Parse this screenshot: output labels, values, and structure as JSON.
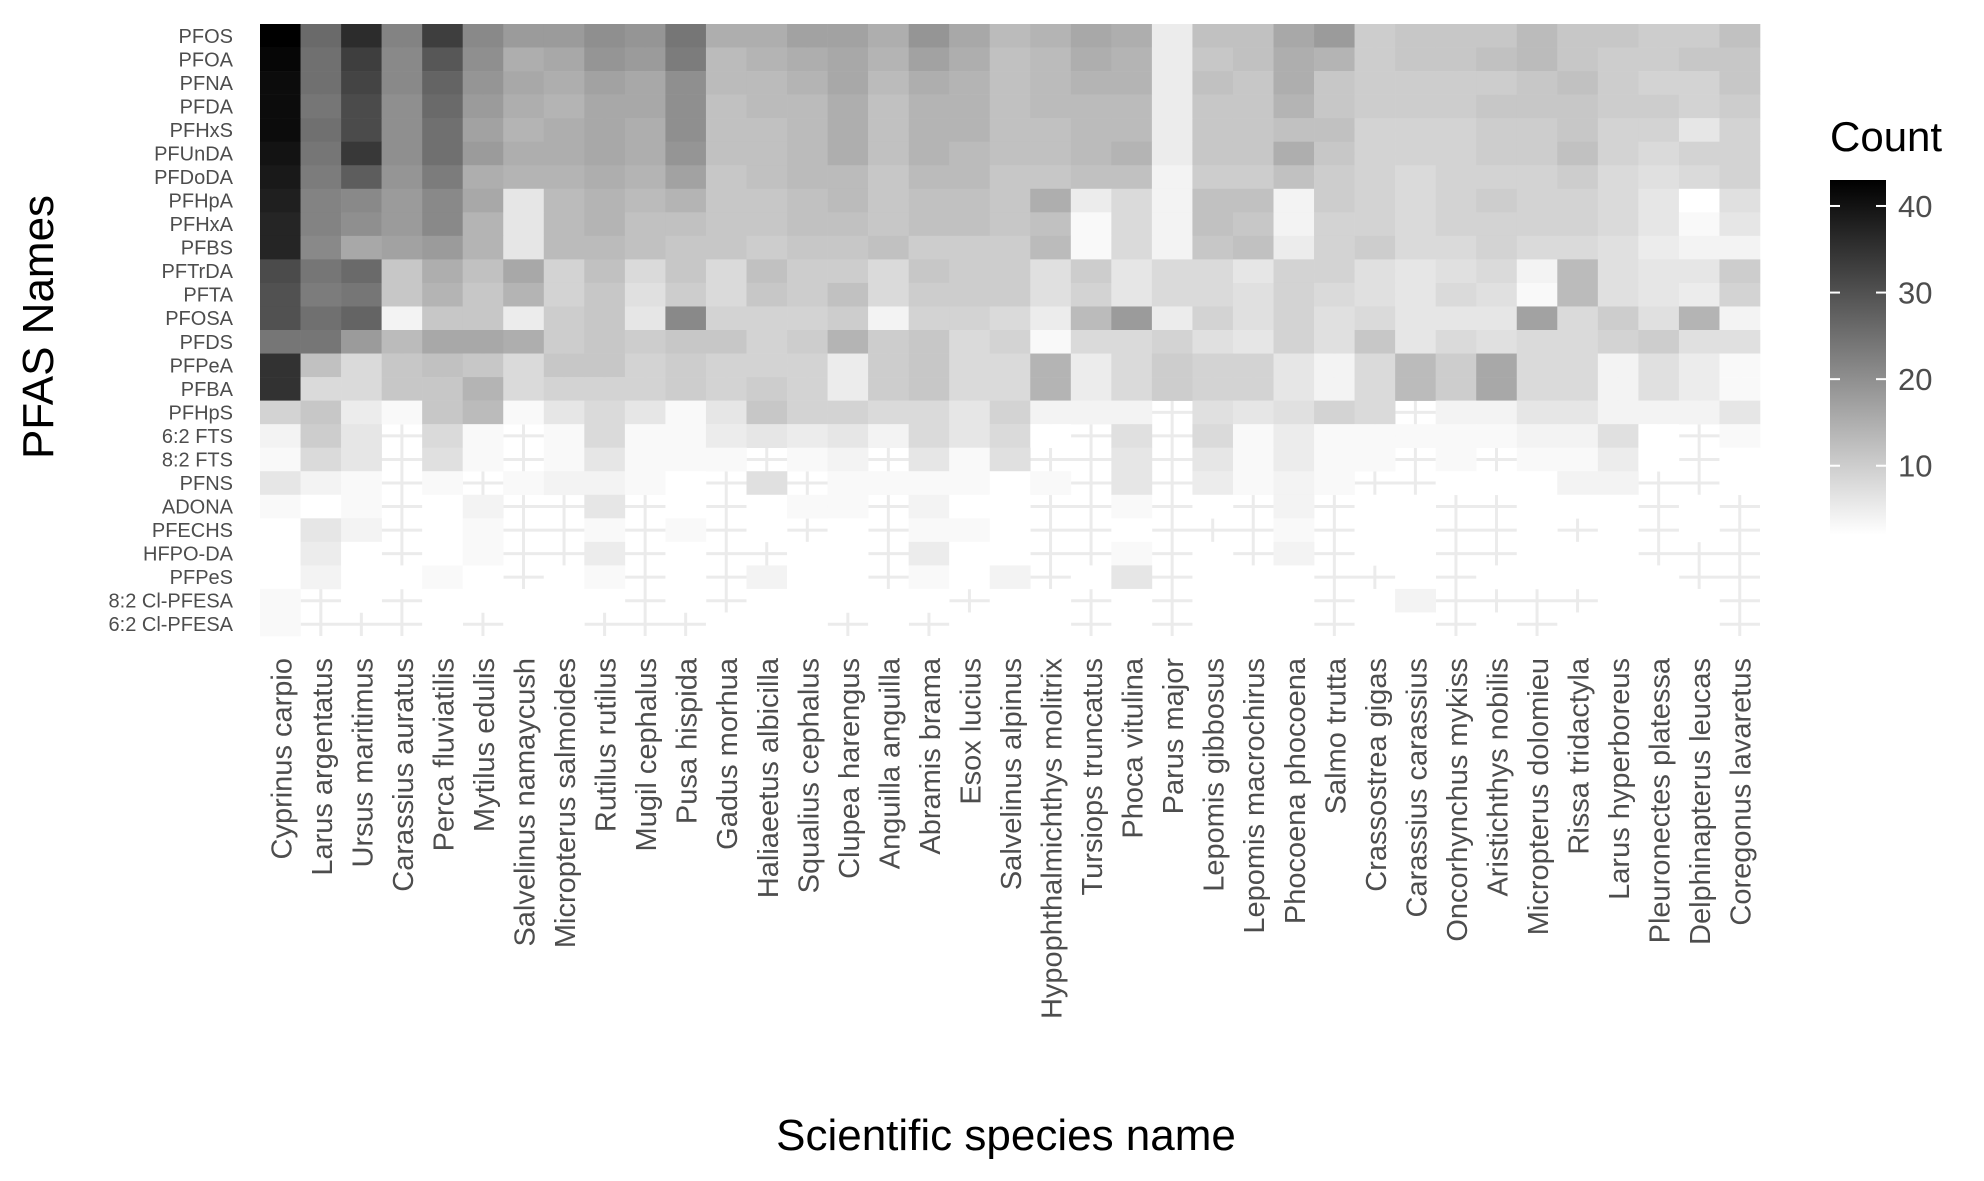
{
  "chart_data": {
    "type": "heatmap",
    "title": "",
    "xlabel": "Scientific species name",
    "ylabel": "PFAS Names",
    "legend": {
      "title": "Count",
      "ticks": [
        10,
        20,
        30,
        40
      ],
      "range": [
        2,
        43
      ],
      "colors": [
        "#ffffff",
        "#000000"
      ],
      "position": "right"
    },
    "x": [
      "Cyprinus carpio",
      "Larus argentatus",
      "Ursus maritimus",
      "Carassius auratus",
      "Perca fluviatilis",
      "Mytilus edulis",
      "Salvelinus namaycush",
      "Micropterus salmoides",
      "Rutilus rutilus",
      "Mugil cephalus",
      "Pusa hispida",
      "Gadus morhua",
      "Haliaeetus albicilla",
      "Squalius cephalus",
      "Clupea harengus",
      "Anguilla anguilla",
      "Abramis brama",
      "Esox lucius",
      "Salvelinus alpinus",
      "Hypophthalmichthys molitrix",
      "Tursiops truncatus",
      "Phoca vitulina",
      "Parus major",
      "Lepomis gibbosus",
      "Lepomis macrochirus",
      "Phocoena phocoena",
      "Salmo trutta",
      "Crassostrea gigas",
      "Carassius carassius",
      "Oncorhynchus mykiss",
      "Aristichthys nobilis",
      "Micropterus dolomieu",
      "Rissa tridactyla",
      "Larus hyperboreus",
      "Pleuronectes platessa",
      "Delphinapterus leucas",
      "Coregonus lavaretus"
    ],
    "y": [
      "PFOS",
      "PFOA",
      "PFNA",
      "PFDA",
      "PFHxS",
      "PFUnDA",
      "PFDoDA",
      "PFHpA",
      "PFHxA",
      "PFBS",
      "PFTrDA",
      "PFTA",
      "PFOSA",
      "PFDS",
      "PFPeA",
      "PFBA",
      "PFHpS",
      "6:2 FTS",
      "8:2 FTS",
      "PFNS",
      "ADONA",
      "PFECHS",
      "HFPO-DA",
      "PFPeS",
      "8:2 Cl-PFESA",
      "6:2 Cl-PFESA"
    ],
    "values": [
      [
        43,
        26,
        36,
        22,
        33,
        21,
        18,
        18,
        20,
        19,
        24,
        15,
        15,
        17,
        17,
        15,
        19,
        16,
        13,
        14,
        16,
        15,
        5,
        12,
        12,
        16,
        18,
        10,
        11,
        11,
        11,
        13,
        11,
        11,
        10,
        10,
        12
      ],
      [
        42,
        25,
        33,
        21,
        29,
        20,
        15,
        16,
        19,
        18,
        23,
        13,
        14,
        15,
        16,
        14,
        17,
        15,
        12,
        13,
        15,
        14,
        5,
        11,
        12,
        15,
        14,
        10,
        11,
        11,
        12,
        13,
        11,
        10,
        10,
        11,
        11
      ],
      [
        41,
        25,
        32,
        21,
        27,
        19,
        16,
        15,
        17,
        16,
        20,
        13,
        13,
        14,
        16,
        13,
        15,
        14,
        12,
        13,
        14,
        14,
        5,
        12,
        11,
        15,
        11,
        10,
        10,
        10,
        10,
        11,
        12,
        10,
        9,
        9,
        11
      ],
      [
        41,
        24,
        31,
        20,
        26,
        18,
        15,
        14,
        16,
        16,
        20,
        12,
        13,
        13,
        15,
        12,
        14,
        14,
        12,
        13,
        13,
        13,
        5,
        11,
        11,
        14,
        11,
        10,
        10,
        10,
        11,
        11,
        11,
        10,
        10,
        9,
        10
      ],
      [
        41,
        25,
        31,
        20,
        25,
        17,
        14,
        15,
        16,
        15,
        20,
        12,
        12,
        13,
        15,
        12,
        14,
        14,
        12,
        12,
        13,
        13,
        5,
        11,
        11,
        12,
        12,
        9,
        9,
        9,
        10,
        10,
        11,
        9,
        9,
        6,
        9
      ],
      [
        40,
        24,
        34,
        20,
        25,
        18,
        15,
        15,
        16,
        15,
        19,
        12,
        12,
        13,
        15,
        12,
        14,
        13,
        12,
        12,
        13,
        14,
        5,
        11,
        11,
        15,
        11,
        9,
        9,
        9,
        10,
        10,
        12,
        9,
        8,
        9,
        9
      ],
      [
        39,
        23,
        28,
        19,
        23,
        15,
        14,
        14,
        15,
        14,
        17,
        11,
        12,
        13,
        13,
        11,
        13,
        13,
        11,
        11,
        12,
        12,
        4,
        10,
        10,
        12,
        10,
        9,
        8,
        9,
        9,
        9,
        10,
        8,
        7,
        8,
        9
      ],
      [
        38,
        22,
        21,
        18,
        21,
        16,
        6,
        13,
        14,
        13,
        14,
        11,
        11,
        12,
        13,
        11,
        12,
        12,
        11,
        15,
        5,
        8,
        4,
        12,
        12,
        4,
        10,
        9,
        8,
        9,
        10,
        9,
        9,
        8,
        6,
        2,
        7
      ],
      [
        37,
        22,
        20,
        18,
        21,
        14,
        6,
        13,
        14,
        12,
        12,
        11,
        11,
        12,
        12,
        11,
        12,
        12,
        11,
        12,
        3,
        8,
        4,
        12,
        11,
        4,
        9,
        9,
        8,
        9,
        9,
        9,
        9,
        8,
        6,
        3,
        6
      ],
      [
        37,
        21,
        16,
        17,
        18,
        14,
        6,
        13,
        13,
        12,
        11,
        11,
        10,
        11,
        11,
        12,
        10,
        10,
        10,
        13,
        3,
        8,
        4,
        11,
        12,
        5,
        9,
        10,
        8,
        8,
        9,
        8,
        8,
        7,
        5,
        4,
        4
      ],
      [
        31,
        24,
        26,
        11,
        15,
        12,
        16,
        9,
        12,
        8,
        11,
        8,
        12,
        10,
        10,
        8,
        11,
        10,
        10,
        7,
        10,
        6,
        8,
        8,
        6,
        9,
        9,
        7,
        6,
        7,
        8,
        4,
        13,
        7,
        6,
        6,
        10
      ],
      [
        30,
        23,
        24,
        11,
        14,
        11,
        14,
        9,
        11,
        7,
        10,
        8,
        11,
        10,
        12,
        8,
        10,
        10,
        10,
        7,
        9,
        6,
        8,
        8,
        7,
        9,
        8,
        7,
        6,
        8,
        7,
        3,
        13,
        7,
        6,
        5,
        9
      ],
      [
        30,
        25,
        27,
        4,
        11,
        11,
        5,
        10,
        11,
        6,
        21,
        9,
        9,
        9,
        10,
        4,
        9,
        9,
        8,
        5,
        13,
        18,
        5,
        9,
        7,
        9,
        7,
        8,
        6,
        6,
        6,
        17,
        8,
        10,
        7,
        14,
        4
      ],
      [
        24,
        24,
        18,
        13,
        16,
        16,
        15,
        10,
        11,
        10,
        11,
        11,
        9,
        10,
        14,
        10,
        11,
        8,
        9,
        3,
        8,
        8,
        9,
        7,
        6,
        9,
        7,
        11,
        6,
        8,
        7,
        8,
        8,
        9,
        10,
        7,
        7
      ],
      [
        35,
        12,
        8,
        11,
        12,
        11,
        8,
        11,
        11,
        9,
        10,
        9,
        9,
        9,
        5,
        10,
        11,
        8,
        8,
        14,
        5,
        8,
        10,
        9,
        9,
        6,
        4,
        8,
        13,
        10,
        16,
        8,
        8,
        4,
        7,
        5,
        3
      ],
      [
        35,
        8,
        8,
        11,
        11,
        14,
        8,
        9,
        9,
        9,
        10,
        9,
        10,
        9,
        5,
        10,
        11,
        8,
        8,
        14,
        5,
        8,
        10,
        9,
        9,
        6,
        4,
        8,
        13,
        10,
        16,
        8,
        8,
        4,
        7,
        5,
        3
      ],
      [
        9,
        11,
        5,
        3,
        11,
        13,
        3,
        6,
        8,
        6,
        3,
        6,
        11,
        9,
        9,
        8,
        8,
        6,
        9,
        4,
        4,
        4,
        0,
        7,
        6,
        7,
        9,
        8,
        0,
        4,
        4,
        6,
        6,
        4,
        4,
        4,
        6
      ],
      [
        4,
        10,
        6,
        0,
        8,
        3,
        0,
        3,
        8,
        3,
        3,
        5,
        6,
        5,
        6,
        4,
        8,
        6,
        8,
        2,
        0,
        7,
        0,
        8,
        3,
        5,
        3,
        3,
        3,
        3,
        3,
        4,
        4,
        7,
        2,
        0,
        3
      ],
      [
        3,
        8,
        6,
        0,
        7,
        3,
        0,
        3,
        6,
        3,
        3,
        3,
        0,
        3,
        4,
        0,
        6,
        3,
        7,
        0,
        0,
        6,
        0,
        6,
        3,
        5,
        3,
        3,
        0,
        3,
        0,
        3,
        3,
        5,
        2,
        0,
        2
      ],
      [
        6,
        4,
        3,
        0,
        3,
        0,
        3,
        4,
        4,
        3,
        2,
        0,
        7,
        0,
        3,
        3,
        3,
        3,
        2,
        3,
        0,
        6,
        0,
        5,
        3,
        4,
        3,
        0,
        0,
        2,
        2,
        2,
        4,
        4,
        0,
        0,
        2
      ],
      [
        3,
        2,
        3,
        0,
        2,
        4,
        0,
        0,
        6,
        0,
        2,
        0,
        2,
        3,
        3,
        0,
        4,
        2,
        2,
        0,
        0,
        3,
        0,
        2,
        0,
        4,
        0,
        2,
        2,
        0,
        0,
        2,
        2,
        2,
        0,
        2,
        0
      ],
      [
        2,
        6,
        4,
        0,
        2,
        3,
        0,
        0,
        3,
        0,
        3,
        0,
        2,
        0,
        2,
        0,
        3,
        3,
        2,
        0,
        0,
        2,
        0,
        0,
        0,
        3,
        0,
        2,
        2,
        0,
        0,
        2,
        0,
        2,
        0,
        2,
        0
      ],
      [
        2,
        5,
        2,
        0,
        2,
        3,
        0,
        0,
        5,
        0,
        2,
        0,
        0,
        2,
        2,
        0,
        5,
        2,
        2,
        0,
        0,
        3,
        0,
        2,
        0,
        4,
        0,
        2,
        2,
        0,
        0,
        2,
        2,
        2,
        0,
        0,
        0
      ],
      [
        2,
        4,
        2,
        2,
        3,
        2,
        0,
        2,
        3,
        0,
        2,
        0,
        4,
        2,
        2,
        0,
        3,
        2,
        4,
        0,
        2,
        6,
        0,
        2,
        2,
        2,
        0,
        0,
        2,
        0,
        2,
        2,
        2,
        2,
        2,
        0,
        0
      ],
      [
        3,
        0,
        2,
        0,
        2,
        2,
        2,
        2,
        2,
        0,
        2,
        0,
        2,
        2,
        2,
        2,
        2,
        0,
        2,
        2,
        0,
        2,
        0,
        2,
        2,
        2,
        0,
        2,
        4,
        0,
        0,
        0,
        0,
        2,
        2,
        2,
        0
      ],
      [
        3,
        0,
        0,
        0,
        2,
        0,
        2,
        2,
        0,
        0,
        0,
        2,
        2,
        2,
        0,
        2,
        0,
        2,
        2,
        2,
        0,
        2,
        0,
        2,
        2,
        2,
        0,
        2,
        2,
        0,
        2,
        0,
        2,
        2,
        2,
        2,
        0
      ]
    ],
    "grid": true
  }
}
